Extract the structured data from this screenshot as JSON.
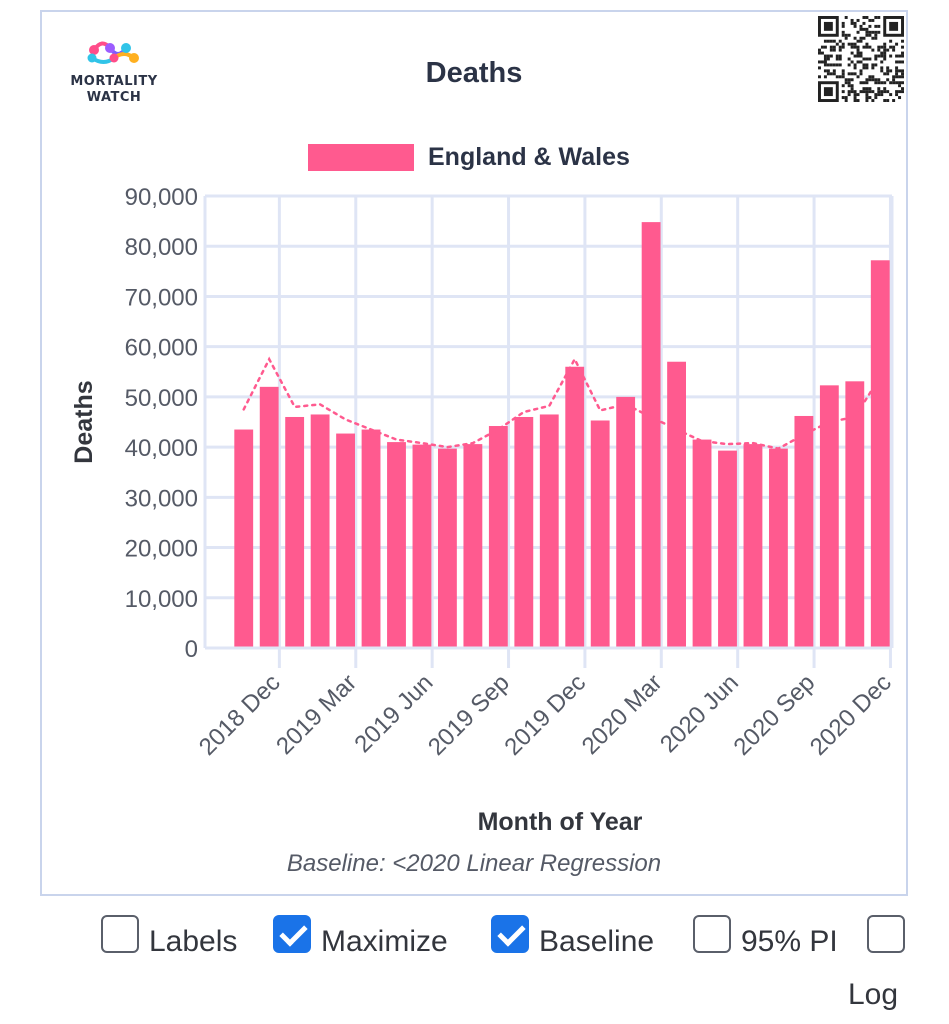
{
  "logo": {
    "line1": "MORTALITY",
    "line2": "WATCH"
  },
  "chart_data": {
    "type": "bar",
    "title": "Deaths",
    "xlabel": "Month of Year",
    "ylabel": "Deaths",
    "note": "Baseline: <2020 Linear Regression",
    "ylim": [
      0,
      90000
    ],
    "yticks": [
      "0",
      "10,000",
      "20,000",
      "30,000",
      "40,000",
      "50,000",
      "60,000",
      "70,000",
      "80,000",
      "90,000"
    ],
    "xtick_labels": [
      "2018 Dec",
      "2019 Mar",
      "2019 Jun",
      "2019 Sep",
      "2019 Dec",
      "2020 Mar",
      "2020 Jun",
      "2020 Sep",
      "2020 Dec"
    ],
    "legend": {
      "position": "top-center"
    },
    "grid": true,
    "categories": [
      "2018 Dec",
      "2019 Jan",
      "2019 Feb",
      "2019 Mar",
      "2019 Apr",
      "2019 May",
      "2019 Jun",
      "2019 Jul",
      "2019 Aug",
      "2019 Sep",
      "2019 Oct",
      "2019 Nov",
      "2019 Dec",
      "2020 Jan",
      "2020 Feb",
      "2020 Mar",
      "2020 Apr",
      "2020 May",
      "2020 Jun",
      "2020 Jul",
      "2020 Aug",
      "2020 Sep",
      "2020 Oct",
      "2020 Nov",
      "2020 Dec",
      "2021 Jan"
    ],
    "series": [
      {
        "name": "England & Wales",
        "type": "bar",
        "color": "#ff5a8f",
        "values": [
          43500,
          52000,
          46000,
          46500,
          42700,
          43500,
          41000,
          40500,
          39700,
          40600,
          44200,
          46000,
          46500,
          56000,
          45300,
          50000,
          84800,
          57000,
          41500,
          39300,
          40600,
          39700,
          46200,
          52300,
          53100,
          77200
        ]
      },
      {
        "name": "Baseline",
        "type": "line",
        "style": "dotted",
        "color": "#ff5a8f",
        "values": [
          47500,
          57500,
          48000,
          48500,
          45500,
          43500,
          41500,
          40800,
          40000,
          40800,
          43500,
          47000,
          48200,
          57500,
          47300,
          48500,
          46000,
          43500,
          41200,
          40600,
          40800,
          39700,
          42500,
          45000,
          46000,
          54000
        ]
      }
    ]
  },
  "controls": [
    {
      "label": "Labels",
      "checked": false
    },
    {
      "label": "Maximize",
      "checked": true
    },
    {
      "label": "Baseline",
      "checked": true
    },
    {
      "label": "95% PI",
      "checked": false
    },
    {
      "label": "Log",
      "checked": false
    }
  ]
}
